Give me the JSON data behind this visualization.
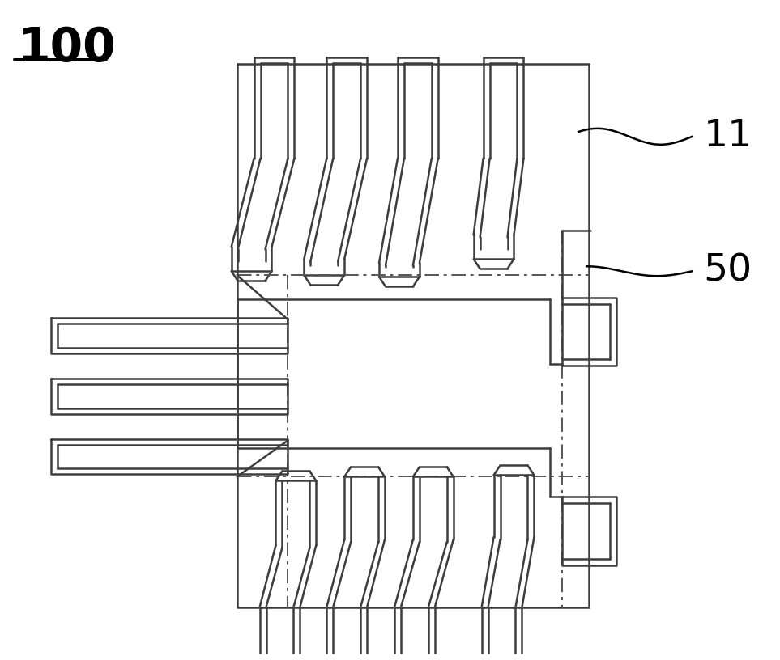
{
  "bg_color": "#ffffff",
  "lc": "#3d3d3d",
  "lw": 1.8,
  "title": "100",
  "label_11": "11",
  "label_50": "50",
  "figsize": [
    9.63,
    8.16
  ],
  "dpi": 100
}
